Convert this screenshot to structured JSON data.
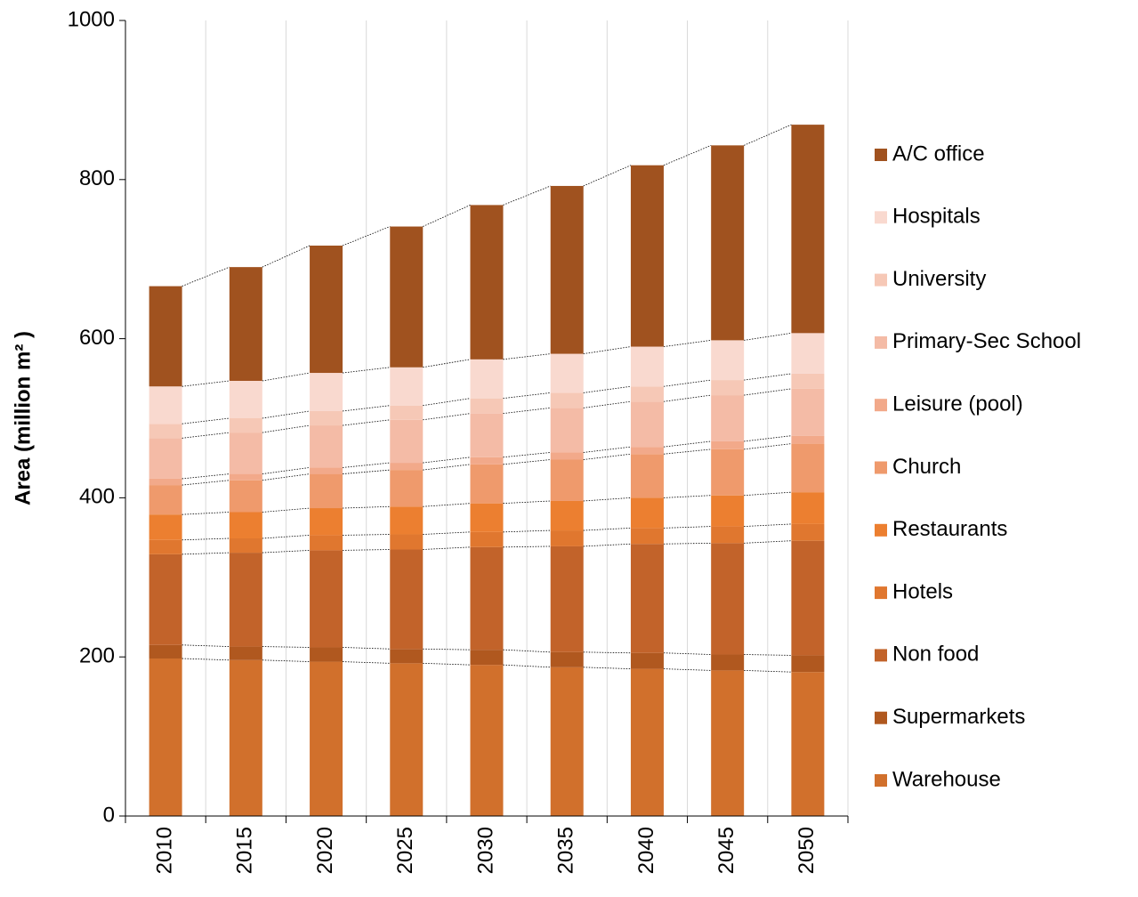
{
  "chart_data": {
    "type": "stacked_bar",
    "y_label": "Area (million m² )",
    "categories": [
      "2010",
      "2015",
      "2020",
      "2025",
      "2030",
      "2035",
      "2040",
      "2045",
      "2050"
    ],
    "series": [
      {
        "name": "Warehouse",
        "color": "#d1702c",
        "values": [
          198,
          196,
          194,
          192,
          190,
          187,
          185,
          183,
          181
        ]
      },
      {
        "name": "Supermarkets",
        "color": "#b0581f",
        "values": [
          17,
          17,
          18,
          18,
          19,
          19,
          20,
          20,
          21
        ]
      },
      {
        "name": "Non food",
        "color": "#c2632a",
        "values": [
          114,
          118,
          122,
          125,
          129,
          133,
          137,
          140,
          144
        ]
      },
      {
        "name": "Hotels",
        "color": "#e0772f",
        "values": [
          18,
          18,
          19,
          19,
          19,
          20,
          20,
          21,
          21
        ]
      },
      {
        "name": "Restaurants",
        "color": "#ec7f30",
        "values": [
          32,
          33,
          34,
          35,
          36,
          37,
          38,
          39,
          40
        ]
      },
      {
        "name": "Church",
        "color": "#ef9a6c",
        "values": [
          37,
          40,
          43,
          46,
          49,
          52,
          55,
          58,
          61
        ]
      },
      {
        "name": "Leisure (pool)",
        "color": "#f2a98a",
        "values": [
          8,
          8,
          8,
          9,
          9,
          9,
          9,
          10,
          10
        ]
      },
      {
        "name": "Primary-Sec School",
        "color": "#f4bba6",
        "values": [
          51,
          52,
          53,
          54,
          55,
          56,
          57,
          58,
          59
        ]
      },
      {
        "name": "University",
        "color": "#f6c8b6",
        "values": [
          18,
          18,
          18,
          18,
          19,
          19,
          19,
          19,
          19
        ]
      },
      {
        "name": "Hospitals",
        "color": "#f9d9cf",
        "values": [
          47,
          47,
          48,
          48,
          49,
          49,
          50,
          50,
          51
        ]
      },
      {
        "name": "A/C office",
        "color": "#a0521f",
        "values": [
          126,
          143,
          160,
          177,
          194,
          211,
          228,
          245,
          262
        ]
      }
    ],
    "ylim": [
      0,
      1000
    ],
    "yticks": [
      0,
      200,
      400,
      600,
      800,
      1000
    ],
    "vertical_grid": true,
    "legend_position": "right"
  }
}
